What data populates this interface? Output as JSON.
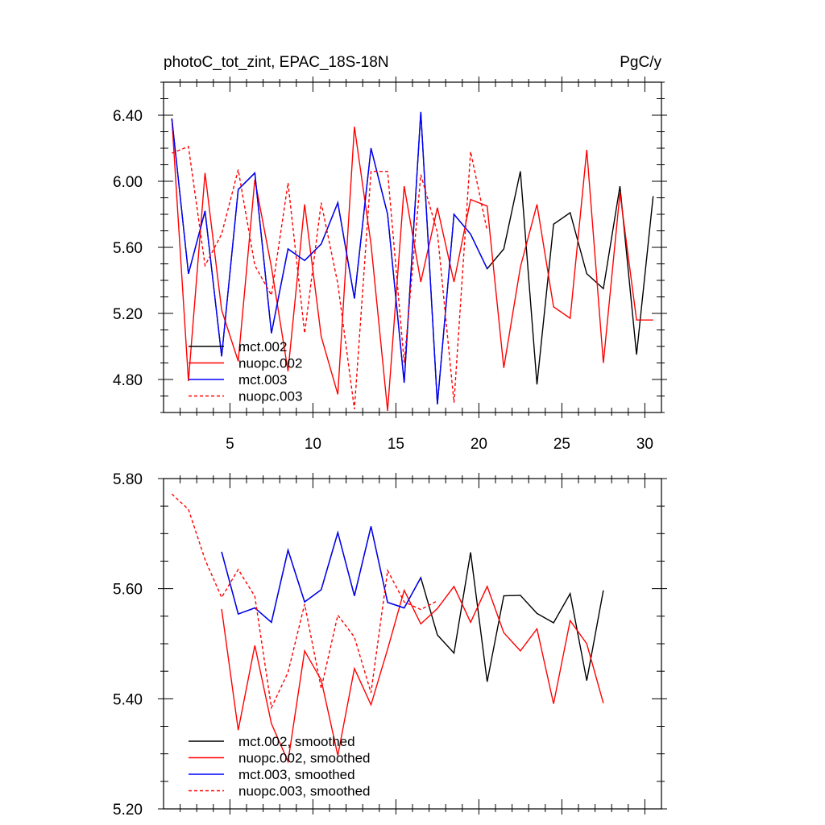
{
  "chart_data": [
    {
      "type": "line",
      "title_left": "photoC_tot_zint, EPAC_18S-18N",
      "title_right": "PgC/y",
      "xlim": [
        1,
        31
      ],
      "ylim": [
        4.6,
        6.6
      ],
      "x_ticks": [
        5,
        10,
        15,
        20,
        25,
        30
      ],
      "x_tick_labels": [
        "5",
        "10",
        "15",
        "20",
        "25",
        "30"
      ],
      "y_ticks": [
        4.8,
        5.2,
        5.6,
        6.0,
        6.4
      ],
      "y_tick_labels": [
        "4.80",
        "5.20",
        "5.60",
        "6.00",
        "6.40"
      ],
      "legend": [
        "mct.002",
        "nuopc.002",
        "mct.003",
        "nuopc.003"
      ],
      "series": [
        {
          "name": "mct.002",
          "color": "#000000",
          "dash": false,
          "x": [
            1.5,
            2.5,
            3.5,
            4.5,
            5.5,
            6.5,
            7.5,
            8.5,
            9.5,
            10.5,
            11.5,
            12.5,
            13.5,
            14.5,
            15.5,
            16.5,
            17.5,
            18.5,
            19.5,
            20.5,
            21.5,
            22.5,
            23.5,
            24.5,
            25.5,
            26.5,
            27.5,
            28.5,
            29.5,
            30.5
          ],
          "values": [
            6.38,
            5.44,
            5.82,
            4.94,
            5.95,
            6.05,
            5.08,
            5.59,
            5.52,
            5.62,
            5.87,
            5.29,
            6.2,
            5.8,
            4.78,
            6.42,
            4.65,
            5.8,
            5.68,
            5.47,
            5.59,
            6.06,
            4.77,
            5.74,
            5.81,
            5.44,
            5.35,
            5.97,
            4.95,
            5.91
          ]
        },
        {
          "name": "nuopc.002",
          "color": "#ff0000",
          "dash": false,
          "x": [
            1.5,
            2.5,
            3.5,
            4.5,
            5.5,
            6.5,
            7.5,
            8.5,
            9.5,
            10.5,
            11.5,
            12.5,
            13.5,
            14.5,
            15.5,
            16.5,
            17.5,
            18.5,
            19.5,
            20.5,
            21.5,
            22.5,
            23.5,
            24.5,
            25.5,
            26.5,
            27.5,
            28.5,
            29.5,
            30.5
          ],
          "values": [
            6.38,
            4.79,
            6.05,
            5.22,
            4.91,
            6.01,
            5.48,
            4.85,
            5.86,
            5.06,
            4.71,
            6.33,
            5.62,
            4.61,
            5.97,
            5.39,
            5.84,
            5.39,
            5.89,
            5.85,
            4.87,
            5.48,
            5.86,
            5.24,
            5.17,
            6.19,
            4.9,
            5.93,
            5.16,
            5.16
          ]
        },
        {
          "name": "mct.003",
          "color": "#0000ff",
          "dash": false,
          "x": [
            1.5,
            2.5,
            3.5,
            4.5,
            5.5,
            6.5,
            7.5,
            8.5,
            9.5,
            10.5,
            11.5,
            12.5,
            13.5,
            14.5,
            15.5,
            16.5,
            17.5,
            18.5,
            19.5,
            20.5
          ],
          "values": [
            6.38,
            5.44,
            5.82,
            4.94,
            5.95,
            6.05,
            5.08,
            5.59,
            5.52,
            5.62,
            5.87,
            5.29,
            6.2,
            5.8,
            4.78,
            6.42,
            4.65,
            5.8,
            5.68,
            5.47
          ]
        },
        {
          "name": "nuopc.003",
          "color": "#ff0000",
          "dash": true,
          "x": [
            1.5,
            2.5,
            3.5,
            4.5,
            5.5,
            6.5,
            7.5,
            8.5,
            9.5,
            10.5,
            11.5,
            12.5,
            13.5,
            14.5,
            15.5,
            16.5,
            17.5,
            18.5,
            19.5,
            20.5
          ],
          "values": [
            6.17,
            6.21,
            5.49,
            5.68,
            6.07,
            5.49,
            5.31,
            5.99,
            5.08,
            5.87,
            5.38,
            4.62,
            6.06,
            6.06,
            4.9,
            6.04,
            5.69,
            4.66,
            6.18,
            5.7
          ]
        }
      ]
    },
    {
      "type": "line",
      "xlim": [
        1,
        31
      ],
      "ylim": [
        5.2,
        5.8
      ],
      "x_ticks": [
        5,
        10,
        15,
        20,
        25,
        30
      ],
      "y_ticks": [
        5.2,
        5.4,
        5.6,
        5.8
      ],
      "y_tick_labels": [
        "5.20",
        "5.40",
        "5.60",
        "5.80"
      ],
      "legend": [
        "mct.002, smoothed",
        "nuopc.002, smoothed",
        "mct.003, smoothed",
        "nuopc.003, smoothed"
      ],
      "series": [
        {
          "name": "mct.002, smoothed",
          "color": "#000000",
          "dash": false,
          "x": [
            4.5,
            5.5,
            6.5,
            7.5,
            8.5,
            9.5,
            10.5,
            11.5,
            12.5,
            13.5,
            14.5,
            15.5,
            16.5,
            17.5,
            18.5,
            19.5,
            20.5,
            21.5,
            22.5,
            23.5,
            24.5,
            25.5,
            26.5,
            27.5
          ],
          "values": [
            5.667,
            5.554,
            5.565,
            5.539,
            5.67,
            5.576,
            5.598,
            5.702,
            5.587,
            5.713,
            5.575,
            5.565,
            5.62,
            5.516,
            5.483,
            5.666,
            5.431,
            5.587,
            5.588,
            5.555,
            5.538,
            5.591,
            5.433,
            5.597
          ]
        },
        {
          "name": "nuopc.002, smoothed",
          "color": "#ff0000",
          "dash": false,
          "x": [
            4.5,
            5.5,
            6.5,
            7.5,
            8.5,
            9.5,
            10.5,
            11.5,
            12.5,
            13.5,
            14.5,
            15.5,
            16.5,
            17.5,
            18.5,
            19.5,
            20.5,
            21.5,
            22.5,
            23.5,
            24.5,
            25.5,
            26.5,
            27.5
          ],
          "values": [
            5.563,
            5.343,
            5.497,
            5.355,
            5.286,
            5.487,
            5.434,
            5.297,
            5.455,
            5.389,
            5.49,
            5.597,
            5.536,
            5.564,
            5.604,
            5.539,
            5.604,
            5.52,
            5.487,
            5.527,
            5.391,
            5.542,
            5.5,
            5.392
          ]
        },
        {
          "name": "mct.003, smoothed",
          "color": "#0000ff",
          "dash": false,
          "x": [
            4.5,
            5.5,
            6.5,
            7.5,
            8.5,
            9.5,
            10.5,
            11.5,
            12.5,
            13.5,
            14.5,
            15.5,
            16.5
          ],
          "values": [
            5.667,
            5.554,
            5.565,
            5.539,
            5.67,
            5.576,
            5.598,
            5.702,
            5.587,
            5.713,
            5.575,
            5.565,
            5.62
          ]
        },
        {
          "name": "nuopc.003, smoothed",
          "color": "#ff0000",
          "dash": true,
          "x": [
            1.5,
            2.5,
            3.5,
            4.5,
            5.5,
            6.5,
            7.5,
            8.5,
            9.5,
            10.5,
            11.5,
            12.5,
            13.5,
            14.5,
            15.5,
            16.5,
            17.5
          ],
          "values": [
            5.772,
            5.744,
            5.653,
            5.584,
            5.635,
            5.586,
            5.384,
            5.448,
            5.572,
            5.419,
            5.552,
            5.512,
            5.411,
            5.633,
            5.576,
            5.562,
            5.578
          ]
        }
      ]
    }
  ]
}
